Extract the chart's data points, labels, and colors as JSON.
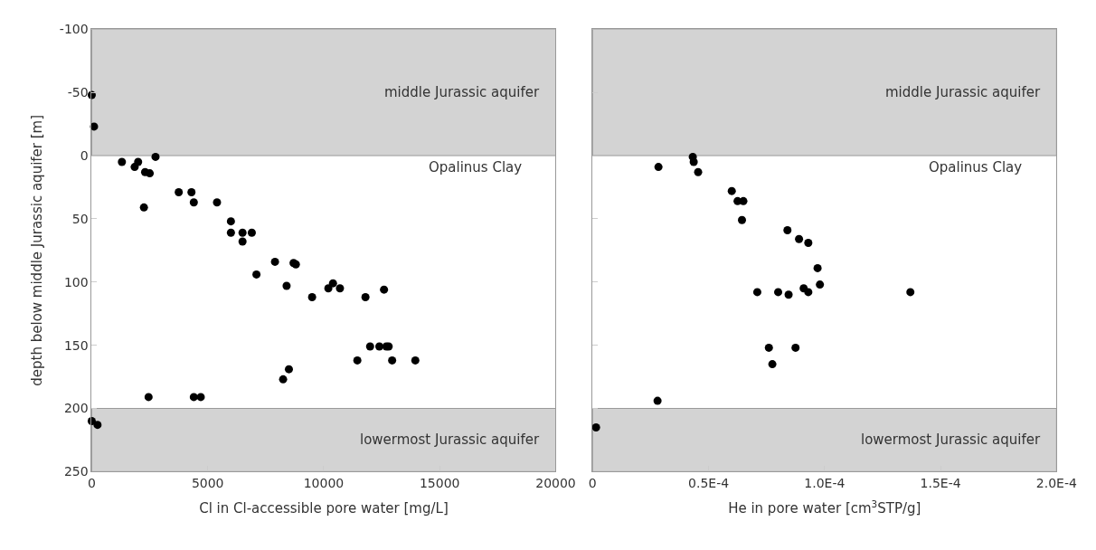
{
  "chart_data": [
    {
      "type": "scatter",
      "xlabel": "Cl in Cl-accessible pore water [mg/L]",
      "ylabel": "depth below middle Jurassic aquifer [m]",
      "marker": "circle",
      "grid": false,
      "xlim": [
        0,
        20000
      ],
      "xticks": [
        0,
        5000,
        10000,
        15000,
        20000
      ],
      "ylim": [
        250,
        -100
      ],
      "yticks": [
        -100,
        -50,
        0,
        50,
        100,
        150,
        200,
        250
      ],
      "bands": [
        {
          "axis": "y",
          "from": -100,
          "to": 0,
          "label": "middle Jurassic aquifer",
          "color": "#d3d3d3"
        },
        {
          "axis": "y",
          "from": 200,
          "to": 250,
          "label": "lowermost Jurassic aquifer",
          "color": "#d3d3d3"
        }
      ],
      "annotations": [
        "Opalinus Clay"
      ],
      "series": [
        {
          "color": "#000000",
          "x": [
            0,
            100,
            1300,
            1850,
            2000,
            2300,
            2500,
            2750,
            3750,
            4300,
            4400,
            5400,
            2250,
            6000,
            6000,
            6500,
            6900,
            6500,
            7900,
            8700,
            8800,
            7100,
            8400,
            9500,
            10200,
            10400,
            10700,
            11800,
            12600,
            12000,
            12400,
            12700,
            12800,
            11450,
            12950,
            13950,
            8500,
            8250,
            2450,
            4400,
            4700,
            0,
            250
          ],
          "values": [
            -48,
            -23,
            5,
            9,
            5,
            13,
            14,
            1,
            29,
            29,
            37,
            37,
            41,
            52,
            61,
            61,
            61,
            68,
            84,
            85,
            86,
            94,
            103,
            112,
            105,
            101,
            105,
            112,
            106,
            151,
            151,
            151,
            151,
            162,
            162,
            162,
            169,
            177,
            191,
            191,
            191,
            210,
            213
          ]
        }
      ]
    },
    {
      "type": "scatter",
      "xlabel": "He in pore water [cm$^{3}$STP/g]",
      "marker": "circle",
      "grid": false,
      "tick_labels": "x",
      "xlim": [
        0,
        0.0002
      ],
      "xticks": [
        0,
        {
          "value": 5e-05,
          "label": "0.5E-4"
        },
        {
          "value": 0.0001,
          "label": "1.0E-4"
        },
        {
          "value": 0.00015,
          "label": "1.5E-4"
        },
        {
          "value": 0.0002,
          "label": "2.0E-4"
        }
      ],
      "ylim": [
        250,
        -100
      ],
      "yticks": [
        -100,
        -50,
        0,
        50,
        100,
        150,
        200,
        250
      ],
      "bands": [
        {
          "axis": "y",
          "from": -100,
          "to": 0,
          "label": "middle Jurassic aquifer",
          "color": "#d3d3d3"
        },
        {
          "axis": "y",
          "from": 200,
          "to": 250,
          "label": "lowermost Jurassic aquifer",
          "color": "#d3d3d3"
        }
      ],
      "annotations": [
        "Opalinus Clay"
      ],
      "series": [
        {
          "color": "#000000",
          "x": [
            2.84e-05,
            4.32e-05,
            4.36e-05,
            4.55e-05,
            6e-05,
            6.25e-05,
            6.5e-05,
            6.44e-05,
            8.4e-05,
            8.9e-05,
            9.3e-05,
            9.7e-05,
            9.8e-05,
            7.1e-05,
            8e-05,
            8.45e-05,
            9.1e-05,
            9.3e-05,
            0.000137,
            7.6e-05,
            8.75e-05,
            7.75e-05,
            2.8e-05,
            1.5e-06
          ],
          "values": [
            9,
            1,
            5,
            13,
            28,
            36,
            36,
            51,
            59,
            66,
            69,
            89,
            102,
            108,
            108,
            110,
            105,
            108,
            108,
            152,
            152,
            165,
            194,
            215
          ]
        }
      ]
    }
  ]
}
